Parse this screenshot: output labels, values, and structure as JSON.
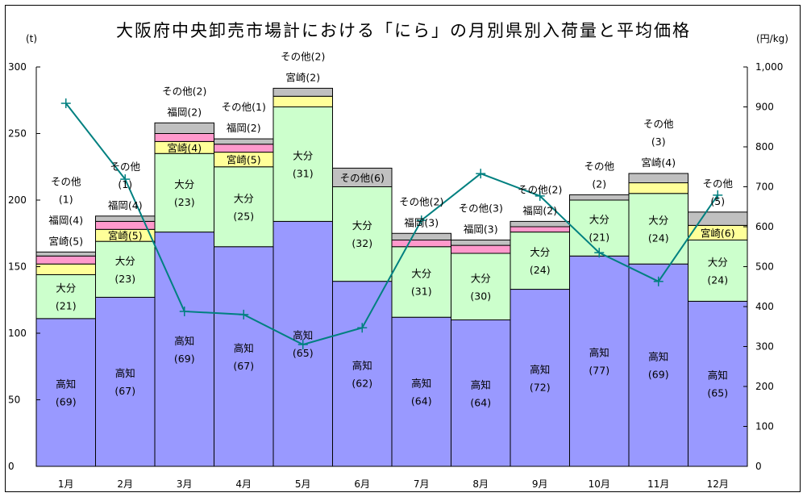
{
  "chart_data": {
    "type": "bar",
    "subtype": "stacked-bar-with-line",
    "title": "大阪府中央卸売市場計における「にら」の月別県別入荷量と平均価格",
    "ylabel_left": "(t)",
    "ylabel_right": "(円/kg)",
    "ylim_left": [
      0,
      300
    ],
    "yticks_left": [
      0,
      50,
      100,
      150,
      200,
      250,
      300
    ],
    "ylim_right": [
      0,
      1000
    ],
    "yticks_right": [
      "0",
      "100",
      "200",
      "300",
      "400",
      "500",
      "600",
      "700",
      "800",
      "900",
      "1,000"
    ],
    "categories": [
      "1月",
      "2月",
      "3月",
      "4月",
      "5月",
      "6月",
      "7月",
      "8月",
      "9月",
      "10月",
      "11月",
      "12月"
    ],
    "series": [
      {
        "name": "高知",
        "color": "#9999ff",
        "values": [
          111,
          127,
          176,
          165,
          184,
          139,
          112,
          110,
          133,
          158,
          152,
          124
        ],
        "labels": [
          "高知\n(69)",
          "高知\n(67)",
          "高知\n(69)",
          "高知\n(67)",
          "高知\n(65)",
          "高知\n(62)",
          "高知\n(64)",
          "高知\n(64)",
          "高知\n(72)",
          "高知\n(77)",
          "高知\n(69)",
          "高知\n(65)"
        ]
      },
      {
        "name": "大分",
        "color": "#ccffcc",
        "values": [
          33,
          42,
          59,
          60,
          86,
          71,
          53,
          50,
          43,
          42,
          53,
          46
        ],
        "labels": [
          "大分\n(21)",
          "大分\n(23)",
          "大分\n(23)",
          "大分\n(25)",
          "大分\n(31)",
          "大分\n(32)",
          "大分\n(31)",
          "大分\n(30)",
          "大分\n(24)",
          "大分\n(21)",
          "大分\n(24)",
          "大分\n(24)"
        ]
      },
      {
        "name": "宮崎",
        "color": "#ffff99",
        "values": [
          8,
          9,
          9,
          11,
          8,
          0,
          0,
          0,
          0,
          0,
          8,
          11
        ],
        "labels": [
          "宮崎(5)",
          "宮崎(5)",
          "宮崎(4)",
          "宮崎(5)",
          "宮崎(2)",
          "",
          "",
          "",
          "",
          "",
          "宮崎(4)",
          "宮崎(6)"
        ]
      },
      {
        "name": "福岡",
        "color": "#ff99cc",
        "values": [
          6,
          6,
          6,
          6,
          0,
          0,
          5,
          6,
          4,
          0,
          0,
          0
        ],
        "labels": [
          "福岡(4)",
          "福岡(4)",
          "福岡(2)",
          "福岡(2)",
          "",
          "",
          "福岡(3)",
          "福岡(3)",
          "福岡(2)",
          "",
          "",
          ""
        ]
      },
      {
        "name": "その他",
        "color": "#c0c0c0",
        "values": [
          3,
          4,
          8,
          4,
          6,
          14,
          5,
          4,
          4,
          4,
          7,
          10
        ],
        "labels": [
          "その他\n(1)",
          "その他\n(1)",
          "その他(2)",
          "その他(1)",
          "その他(2)",
          "その他(6)",
          "その他(2)",
          "その他(3)",
          "その他(2)",
          "その他\n(2)",
          "その他\n(3)",
          "その他\n(5)"
        ]
      }
    ],
    "line": {
      "name": "平均価格",
      "color": "#008080",
      "axis": "right",
      "values": [
        909,
        719,
        388,
        380,
        305,
        347,
        616,
        733,
        677,
        535,
        463,
        679
      ]
    },
    "grid": false,
    "legend": "none"
  }
}
